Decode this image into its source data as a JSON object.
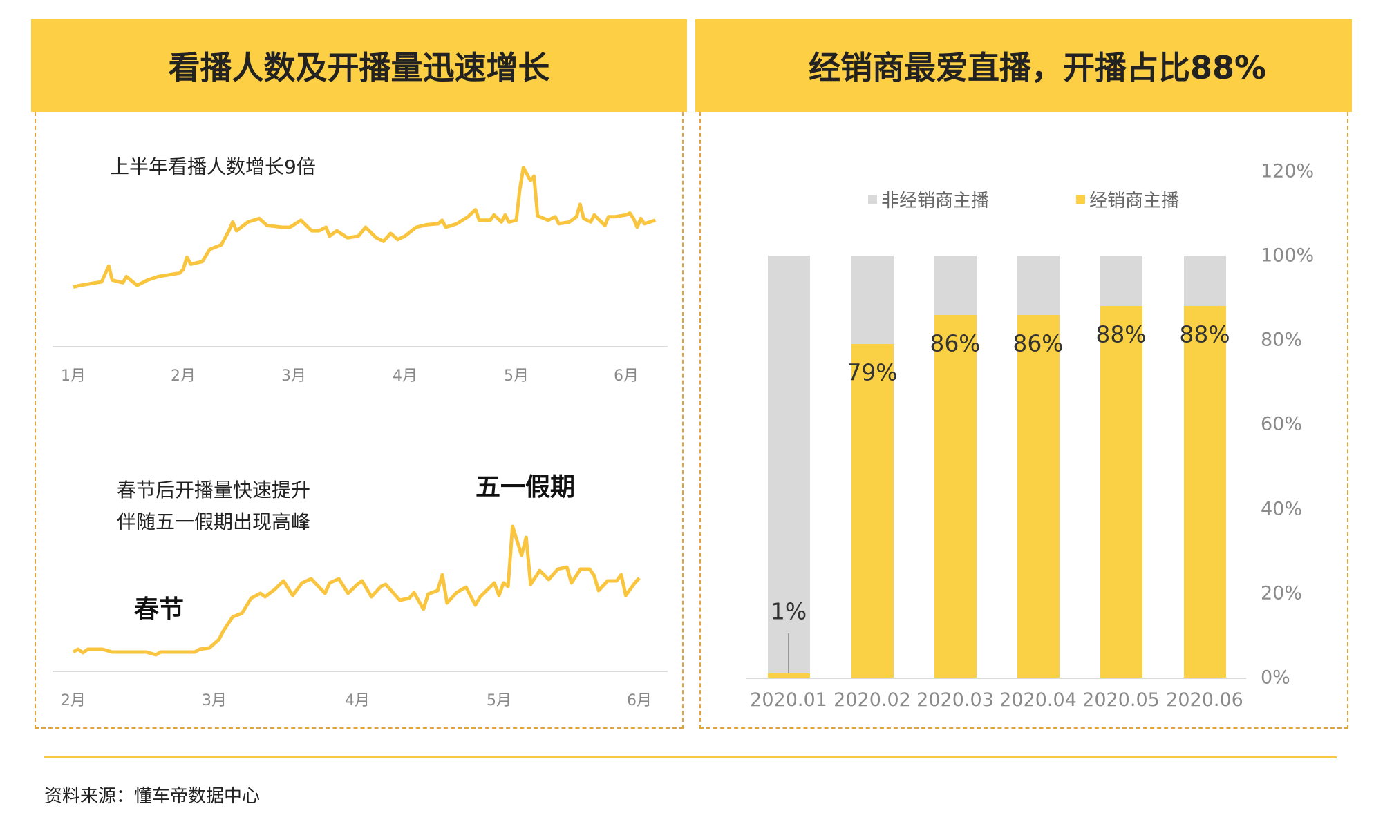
{
  "colors": {
    "header": "#FCCF45",
    "line": "#F9C53F",
    "dealer": "#FAD145",
    "non_dealer": "#D9D9D9",
    "border": "#E0A43C"
  },
  "left_panel": {
    "title": "看播人数及开播量迅速增长",
    "top_chart_note": "上半年看播人数增长9倍",
    "bottom_chart_note_1": "春节后开播量快速提升",
    "bottom_chart_note_2": "伴随五一假期出现高峰",
    "annotation_spring": "春节",
    "annotation_mayday": "五一假期"
  },
  "right_panel": {
    "title": "经销商最爱直播，开播占比88%"
  },
  "footer": {
    "source": "资料来源：懂车帝数据中心"
  },
  "chart_data": [
    {
      "type": "line",
      "title": "上半年看播人数增长9倍",
      "x_tick_labels": [
        "1月",
        "2月",
        "3月",
        "4月",
        "5月",
        "6月"
      ],
      "grid": false,
      "y_axis_shown": false,
      "series": [
        {
          "points": [
            [
              "01-01",
              67
            ],
            [
              "01-03",
              69
            ],
            [
              "01-06",
              71
            ],
            [
              "01-09",
              73
            ],
            [
              "01-11",
              91
            ],
            [
              "01-12",
              75
            ],
            [
              "01-15",
              72
            ],
            [
              "01-16",
              79
            ],
            [
              "01-19",
              69
            ],
            [
              "01-22",
              75
            ],
            [
              "01-25",
              79
            ],
            [
              "01-28",
              81
            ],
            [
              "01-31",
              83
            ],
            [
              "02-01",
              87
            ],
            [
              "02-02",
              101
            ],
            [
              "02-03",
              93
            ],
            [
              "02-06",
              96
            ],
            [
              "02-08",
              110
            ],
            [
              "02-11",
              115
            ],
            [
              "02-13",
              131
            ],
            [
              "02-14",
              141
            ],
            [
              "02-15",
              131
            ],
            [
              "02-18",
              141
            ],
            [
              "02-21",
              145
            ],
            [
              "02-23",
              137
            ],
            [
              "02-25",
              136
            ],
            [
              "02-27",
              135
            ],
            [
              "02-29",
              135
            ],
            [
              "03-03",
              143
            ],
            [
              "03-06",
              131
            ],
            [
              "03-08",
              131
            ],
            [
              "03-10",
              135
            ],
            [
              "03-11",
              125
            ],
            [
              "03-13",
              131
            ],
            [
              "03-16",
              123
            ],
            [
              "03-19",
              125
            ],
            [
              "03-21",
              135
            ],
            [
              "03-24",
              123
            ],
            [
              "03-26",
              119
            ],
            [
              "03-28",
              128
            ],
            [
              "03-30",
              121
            ],
            [
              "04-01",
              125
            ],
            [
              "04-04",
              135
            ],
            [
              "04-07",
              138
            ],
            [
              "04-10",
              139
            ],
            [
              "04-11",
              143
            ],
            [
              "04-12",
              135
            ],
            [
              "04-15",
              139
            ],
            [
              "04-18",
              147
            ],
            [
              "04-20",
              155
            ],
            [
              "04-21",
              143
            ],
            [
              "04-24",
              143
            ],
            [
              "04-25",
              149
            ],
            [
              "04-27",
              141
            ],
            [
              "04-28",
              149
            ],
            [
              "04-29",
              141
            ],
            [
              "05-01",
              143
            ],
            [
              "05-02",
              178
            ],
            [
              "05-03",
              203
            ],
            [
              "05-05",
              188
            ],
            [
              "05-06",
              193
            ],
            [
              "05-07",
              148
            ],
            [
              "05-10",
              143
            ],
            [
              "05-12",
              147
            ],
            [
              "05-13",
              139
            ],
            [
              "05-16",
              141
            ],
            [
              "05-18",
              147
            ],
            [
              "05-19",
              161
            ],
            [
              "05-20",
              145
            ],
            [
              "05-22",
              141
            ],
            [
              "05-23",
              149
            ],
            [
              "05-26",
              137
            ],
            [
              "05-27",
              147
            ],
            [
              "05-29",
              147
            ],
            [
              "06-01",
              149
            ],
            [
              "06-02",
              151
            ],
            [
              "06-03",
              145
            ],
            [
              "06-04",
              135
            ],
            [
              "06-05",
              145
            ],
            [
              "06-06",
              139
            ],
            [
              "06-09",
              143
            ]
          ]
        }
      ]
    },
    {
      "type": "line",
      "title": "春节后开播量快速提升 伴随五一假期出现高峰",
      "x_tick_labels": [
        "2月",
        "3月",
        "4月",
        "5月",
        "6月"
      ],
      "grid": false,
      "y_axis_shown": false,
      "annotations": [
        "春节",
        "五一假期"
      ],
      "series": [
        {
          "points": [
            [
              "02-01",
              27
            ],
            [
              "02-02",
              31
            ],
            [
              "02-03",
              26
            ],
            [
              "02-04",
              31
            ],
            [
              "02-07",
              31
            ],
            [
              "02-09",
              27
            ],
            [
              "02-16",
              27
            ],
            [
              "02-18",
              23
            ],
            [
              "02-19",
              27
            ],
            [
              "02-26",
              27
            ],
            [
              "02-27",
              31
            ],
            [
              "02-29",
              33
            ],
            [
              "03-02",
              45
            ],
            [
              "03-03",
              58
            ],
            [
              "03-05",
              78
            ],
            [
              "03-07",
              83
            ],
            [
              "03-09",
              105
            ],
            [
              "03-11",
              112
            ],
            [
              "03-12",
              107
            ],
            [
              "03-14",
              117
            ],
            [
              "03-16",
              130
            ],
            [
              "03-18",
              109
            ],
            [
              "03-20",
              127
            ],
            [
              "03-22",
              133
            ],
            [
              "03-25",
              112
            ],
            [
              "03-26",
              127
            ],
            [
              "03-28",
              133
            ],
            [
              "03-30",
              112
            ],
            [
              "04-01",
              125
            ],
            [
              "04-02",
              130
            ],
            [
              "04-04",
              107
            ],
            [
              "04-06",
              122
            ],
            [
              "04-07",
              125
            ],
            [
              "04-10",
              102
            ],
            [
              "04-12",
              105
            ],
            [
              "04-13",
              113
            ],
            [
              "04-15",
              89
            ],
            [
              "04-16",
              111
            ],
            [
              "04-18",
              116
            ],
            [
              "04-19",
              139
            ],
            [
              "04-20",
              98
            ],
            [
              "04-22",
              113
            ],
            [
              "04-24",
              121
            ],
            [
              "04-26",
              95
            ],
            [
              "04-27",
              107
            ],
            [
              "04-30",
              127
            ],
            [
              "05-01",
              109
            ],
            [
              "05-02",
              127
            ],
            [
              "05-03",
              122
            ],
            [
              "05-04",
              209
            ],
            [
              "05-06",
              167
            ],
            [
              "05-07",
              193
            ],
            [
              "05-08",
              125
            ],
            [
              "05-10",
              145
            ],
            [
              "05-12",
              132
            ],
            [
              "05-14",
              147
            ],
            [
              "05-16",
              150
            ],
            [
              "05-17",
              127
            ],
            [
              "05-19",
              147
            ],
            [
              "05-21",
              147
            ],
            [
              "05-22",
              138
            ],
            [
              "05-23",
              116
            ],
            [
              "05-25",
              130
            ],
            [
              "05-27",
              130
            ],
            [
              "05-28",
              139
            ],
            [
              "05-29",
              109
            ],
            [
              "05-31",
              127
            ],
            [
              "06-01",
              134
            ]
          ]
        }
      ]
    },
    {
      "type": "bar",
      "stacked": true,
      "categories": [
        "2020.01",
        "2020.02",
        "2020.03",
        "2020.04",
        "2020.05",
        "2020.06"
      ],
      "series": [
        {
          "name": "非经销商主播",
          "values": [
            99,
            21,
            14,
            14,
            12,
            12
          ]
        },
        {
          "name": "经销商主播",
          "values": [
            1,
            79,
            86,
            86,
            88,
            88
          ]
        }
      ],
      "data_labels": [
        "1%",
        "79%",
        "86%",
        "86%",
        "88%",
        "88%"
      ],
      "y_tick_labels": [
        "0%",
        "20%",
        "40%",
        "60%",
        "80%",
        "100%",
        "120%"
      ],
      "ylim": [
        0,
        120
      ],
      "y_axis_position": "right",
      "legend_position": "top",
      "grid": false
    }
  ]
}
